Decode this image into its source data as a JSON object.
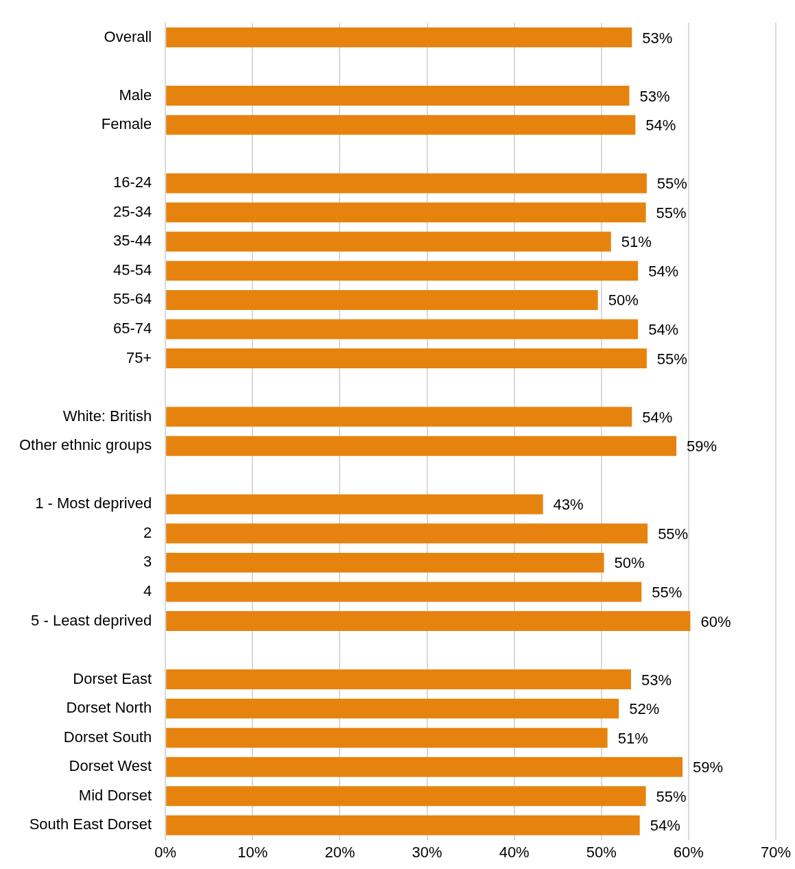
{
  "chart_data": {
    "type": "bar",
    "orientation": "horizontal",
    "categories": [
      "Overall",
      null,
      "Male",
      "Female",
      null,
      "16-24",
      "25-34",
      "35-44",
      "45-54",
      "55-64",
      "65-74",
      "75+",
      null,
      "White: British",
      "Other ethnic groups",
      null,
      "1 - Most deprived",
      "2",
      "3",
      "4",
      "5 - Least deprived",
      null,
      "Dorset East",
      "Dorset North",
      "Dorset South",
      "Dorset West",
      "Mid Dorset",
      "South East Dorset"
    ],
    "values": [
      53.5,
      null,
      53.2,
      53.9,
      null,
      55.2,
      55.1,
      51.1,
      54.2,
      49.6,
      54.2,
      55.2,
      null,
      53.5,
      58.6,
      null,
      43.3,
      55.3,
      50.3,
      54.6,
      60.2,
      null,
      53.4,
      52.0,
      50.7,
      59.3,
      55.1,
      54.4
    ],
    "value_labels": [
      "53%",
      null,
      "53%",
      "54%",
      null,
      "55%",
      "55%",
      "51%",
      "54%",
      "50%",
      "54%",
      "55%",
      null,
      "54%",
      "59%",
      null,
      "43%",
      "55%",
      "50%",
      "55%",
      "60%",
      null,
      "53%",
      "52%",
      "51%",
      "59%",
      "55%",
      "54%"
    ],
    "color": "#e6830f",
    "xlim": [
      0,
      70
    ],
    "xticks": [
      {
        "value": 0,
        "label": "0%"
      },
      {
        "value": 10,
        "label": "10%"
      },
      {
        "value": 20,
        "label": "20%"
      },
      {
        "value": 30,
        "label": "30%"
      },
      {
        "value": 40,
        "label": "40%"
      },
      {
        "value": 50,
        "label": "50%"
      },
      {
        "value": 60,
        "label": "60%"
      },
      {
        "value": 70,
        "label": "70%"
      }
    ],
    "grid": "x",
    "legend": false
  }
}
